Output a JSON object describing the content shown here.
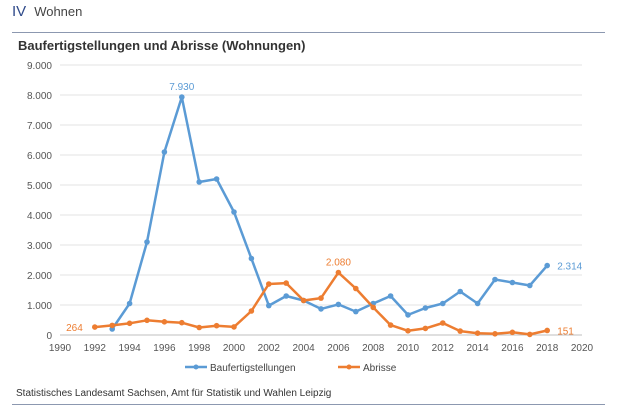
{
  "header": {
    "section_number": "IV",
    "section_title": "Wohnen"
  },
  "source": "Statistisches Landesamt Sachsen, Amt für Statistik und Wahlen Leipzig",
  "chart_data": {
    "type": "line",
    "title": "Baufertigstellungen und Abrisse (Wohnungen)",
    "xlabel": "",
    "ylabel": "",
    "xlim": [
      1990,
      2020
    ],
    "ylim": [
      0,
      9000
    ],
    "x_ticks": [
      "1990",
      "1992",
      "1994",
      "1996",
      "1998",
      "2000",
      "2002",
      "2004",
      "2006",
      "2008",
      "2010",
      "2012",
      "2014",
      "2016",
      "2018",
      "2020"
    ],
    "y_ticks": [
      "0",
      "1.000",
      "2.000",
      "3.000",
      "4.000",
      "5.000",
      "6.000",
      "7.000",
      "8.000",
      "9.000"
    ],
    "grid": "horizontal",
    "legend": "bottom",
    "series": [
      {
        "name": "Baufertigstellungen",
        "color": "#5b9bd5",
        "x": [
          1993,
          1994,
          1995,
          1996,
          1997,
          1998,
          1999,
          2000,
          2001,
          2002,
          2003,
          2004,
          2005,
          2006,
          2007,
          2008,
          2009,
          2010,
          2011,
          2012,
          2013,
          2014,
          2015,
          2016,
          2017,
          2018
        ],
        "values": [
          200,
          1050,
          3100,
          6100,
          7930,
          5100,
          5200,
          4100,
          2550,
          980,
          1300,
          1150,
          870,
          1020,
          780,
          1050,
          1300,
          670,
          900,
          1050,
          1450,
          1050,
          1850,
          1750,
          1650,
          2314
        ],
        "labels": [
          {
            "x": 1997,
            "text": "7.930",
            "pos": "above"
          },
          {
            "x": 2018,
            "text": "2.314",
            "pos": "right"
          }
        ]
      },
      {
        "name": "Abrisse",
        "color": "#ed7d31",
        "x": [
          1992,
          1993,
          1994,
          1995,
          1996,
          1997,
          1998,
          1999,
          2000,
          2001,
          2002,
          2003,
          2004,
          2005,
          2006,
          2007,
          2008,
          2009,
          2010,
          2011,
          2012,
          2013,
          2014,
          2015,
          2016,
          2017,
          2018
        ],
        "values": [
          264,
          320,
          390,
          490,
          440,
          410,
          250,
          310,
          270,
          800,
          1700,
          1730,
          1150,
          1230,
          2080,
          1550,
          920,
          330,
          140,
          220,
          400,
          130,
          60,
          40,
          90,
          20,
          151
        ],
        "labels": [
          {
            "x": 1992,
            "text": "264",
            "pos": "left"
          },
          {
            "x": 2006,
            "text": "2.080",
            "pos": "above"
          },
          {
            "x": 2018,
            "text": "151",
            "pos": "right"
          }
        ]
      }
    ]
  }
}
